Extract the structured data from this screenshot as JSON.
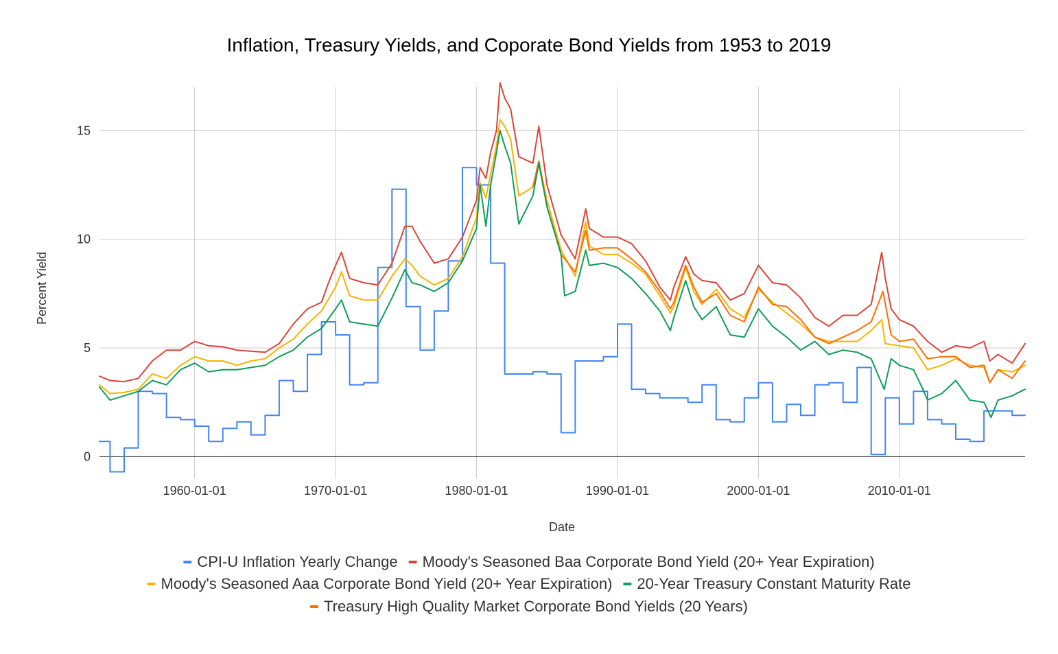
{
  "chart_data": {
    "type": "line",
    "title": "Inflation, Treasury Yields, and Coporate Bond Yields from 1953 to 2019",
    "xlabel": "Date",
    "ylabel": "Percent Yield",
    "x_type": "date",
    "xlim": [
      "1953-04-01",
      "2018-12-01"
    ],
    "ylim": [
      -1,
      17
    ],
    "x_ticks": [
      "1960-01-01",
      "1970-01-01",
      "1980-01-01",
      "1990-01-01",
      "2000-01-01",
      "2010-01-01"
    ],
    "y_ticks": [
      0,
      5,
      10,
      15
    ],
    "grid": true,
    "legend_position": "bottom",
    "series": [
      {
        "name": "CPI-U Inflation Yearly Change",
        "color": "#4285F4",
        "step": true,
        "x": [
          "1953-04-01",
          "1954-01-01",
          "1955-01-01",
          "1956-01-01",
          "1957-01-01",
          "1958-01-01",
          "1959-01-01",
          "1960-01-01",
          "1961-01-01",
          "1962-01-01",
          "1963-01-01",
          "1964-01-01",
          "1965-01-01",
          "1966-01-01",
          "1967-01-01",
          "1968-01-01",
          "1969-01-01",
          "1970-01-01",
          "1971-01-01",
          "1972-01-01",
          "1973-01-01",
          "1974-01-01",
          "1975-01-01",
          "1976-01-01",
          "1977-01-01",
          "1978-01-01",
          "1979-01-01",
          "1980-01-01",
          "1981-01-01",
          "1982-01-01",
          "1983-01-01",
          "1984-01-01",
          "1985-01-01",
          "1986-01-01",
          "1987-01-01",
          "1988-01-01",
          "1989-01-01",
          "1990-01-01",
          "1991-01-01",
          "1992-01-01",
          "1993-01-01",
          "1994-01-01",
          "1995-01-01",
          "1996-01-01",
          "1997-01-01",
          "1998-01-01",
          "1999-01-01",
          "2000-01-01",
          "2001-01-01",
          "2002-01-01",
          "2003-01-01",
          "2004-01-01",
          "2005-01-01",
          "2006-01-01",
          "2007-01-01",
          "2008-01-01",
          "2009-01-01",
          "2010-01-01",
          "2011-01-01",
          "2012-01-01",
          "2013-01-01",
          "2014-01-01",
          "2015-01-01",
          "2016-01-01",
          "2017-01-01",
          "2018-01-01",
          "2018-12-01"
        ],
        "values": [
          0.7,
          -0.7,
          0.4,
          3.0,
          2.9,
          1.8,
          1.7,
          1.4,
          0.7,
          1.3,
          1.6,
          1.0,
          1.9,
          3.5,
          3.0,
          4.7,
          6.2,
          5.6,
          3.3,
          3.4,
          8.7,
          12.3,
          6.9,
          4.9,
          6.7,
          9.0,
          13.3,
          12.5,
          8.9,
          3.8,
          3.8,
          3.9,
          3.8,
          1.1,
          4.4,
          4.4,
          4.6,
          6.1,
          3.1,
          2.9,
          2.7,
          2.7,
          2.5,
          3.3,
          1.7,
          1.6,
          2.7,
          3.4,
          1.6,
          2.4,
          1.9,
          3.3,
          3.4,
          2.5,
          4.1,
          0.1,
          2.7,
          1.5,
          3.0,
          1.7,
          1.5,
          0.8,
          0.7,
          2.1,
          2.1,
          1.9,
          1.9
        ]
      },
      {
        "name": "Moody's Seasoned Baa Corporate Bond Yield (20+ Year Expiration)",
        "color": "#DB4437",
        "x": [
          "1953-04-01",
          "1954-01-01",
          "1955-01-01",
          "1956-01-01",
          "1957-01-01",
          "1958-01-01",
          "1959-01-01",
          "1960-01-01",
          "1961-01-01",
          "1962-01-01",
          "1963-01-01",
          "1964-01-01",
          "1965-01-01",
          "1966-01-01",
          "1967-01-01",
          "1968-01-01",
          "1969-01-01",
          "1969-07-01",
          "1970-01-01",
          "1970-06-01",
          "1971-01-01",
          "1972-01-01",
          "1973-01-01",
          "1974-01-01",
          "1974-12-01",
          "1975-06-01",
          "1976-01-01",
          "1977-01-01",
          "1978-01-01",
          "1979-01-01",
          "1980-01-01",
          "1980-04-01",
          "1980-09-01",
          "1981-01-01",
          "1981-06-01",
          "1981-09-01",
          "1982-01-01",
          "1982-06-01",
          "1983-01-01",
          "1984-01-01",
          "1984-06-01",
          "1985-01-01",
          "1986-01-01",
          "1987-01-01",
          "1987-10-01",
          "1988-01-01",
          "1989-01-01",
          "1990-01-01",
          "1991-01-01",
          "1992-01-01",
          "1993-01-01",
          "1993-10-01",
          "1994-01-01",
          "1994-11-01",
          "1995-06-01",
          "1996-01-01",
          "1997-01-01",
          "1998-01-01",
          "1999-01-01",
          "2000-01-01",
          "2001-01-01",
          "2002-01-01",
          "2003-01-01",
          "2004-01-01",
          "2005-01-01",
          "2006-01-01",
          "2007-01-01",
          "2008-01-01",
          "2008-10-01",
          "2009-01-01",
          "2009-06-01",
          "2010-01-01",
          "2011-01-01",
          "2012-01-01",
          "2013-01-01",
          "2014-01-01",
          "2015-01-01",
          "2016-01-01",
          "2016-06-01",
          "2017-01-01",
          "2018-01-01",
          "2018-12-01"
        ],
        "values": [
          3.7,
          3.5,
          3.45,
          3.6,
          4.4,
          4.9,
          4.9,
          5.3,
          5.1,
          5.05,
          4.9,
          4.85,
          4.8,
          5.2,
          6.1,
          6.8,
          7.1,
          8.0,
          8.8,
          9.4,
          8.2,
          8.0,
          7.9,
          8.9,
          10.6,
          10.6,
          9.9,
          8.9,
          9.1,
          10.1,
          11.8,
          13.3,
          12.8,
          14.0,
          15.0,
          17.2,
          16.5,
          16.0,
          13.8,
          13.5,
          15.2,
          12.5,
          10.2,
          9.1,
          11.4,
          10.5,
          10.1,
          10.1,
          9.8,
          9.0,
          7.8,
          7.2,
          7.8,
          9.2,
          8.4,
          8.1,
          8.0,
          7.2,
          7.5,
          8.8,
          8.0,
          7.9,
          7.3,
          6.4,
          6.0,
          6.5,
          6.5,
          7.0,
          9.4,
          8.2,
          6.8,
          6.3,
          6.0,
          5.3,
          4.8,
          5.1,
          5.0,
          5.3,
          4.4,
          4.7,
          4.3,
          5.2
        ]
      },
      {
        "name": "Moody's Seasoned Aaa Corporate Bond Yield (20+ Year Expiration)",
        "color": "#F4B400",
        "x": [
          "1953-04-01",
          "1954-01-01",
          "1955-01-01",
          "1956-01-01",
          "1957-01-01",
          "1958-01-01",
          "1959-01-01",
          "1960-01-01",
          "1961-01-01",
          "1962-01-01",
          "1963-01-01",
          "1964-01-01",
          "1965-01-01",
          "1966-01-01",
          "1967-01-01",
          "1968-01-01",
          "1969-01-01",
          "1970-01-01",
          "1970-06-01",
          "1971-01-01",
          "1972-01-01",
          "1973-01-01",
          "1974-01-01",
          "1974-12-01",
          "1975-06-01",
          "1976-01-01",
          "1977-01-01",
          "1978-01-01",
          "1979-01-01",
          "1980-01-01",
          "1980-04-01",
          "1980-09-01",
          "1981-01-01",
          "1981-06-01",
          "1981-09-01",
          "1982-01-01",
          "1982-06-01",
          "1983-01-01",
          "1984-01-01",
          "1984-06-01",
          "1985-01-01",
          "1986-01-01",
          "1987-01-01",
          "1987-10-01",
          "1988-01-01",
          "1989-01-01",
          "1990-01-01",
          "1991-01-01",
          "1992-01-01",
          "1993-01-01",
          "1993-10-01",
          "1994-01-01",
          "1994-11-01",
          "1995-06-01",
          "1996-01-01",
          "1997-01-01",
          "1998-01-01",
          "1999-01-01",
          "2000-01-01",
          "2001-01-01",
          "2002-01-01",
          "2003-01-01",
          "2004-01-01",
          "2005-01-01",
          "2006-01-01",
          "2007-01-01",
          "2008-01-01",
          "2008-10-01",
          "2009-01-01",
          "2010-01-01",
          "2011-01-01",
          "2012-01-01",
          "2013-01-01",
          "2014-01-01",
          "2015-01-01",
          "2016-01-01",
          "2016-06-01",
          "2017-01-01",
          "2018-01-01",
          "2018-12-01"
        ],
        "values": [
          3.3,
          2.9,
          2.95,
          3.1,
          3.8,
          3.6,
          4.2,
          4.6,
          4.4,
          4.4,
          4.2,
          4.4,
          4.5,
          5.0,
          5.4,
          6.1,
          6.7,
          7.8,
          8.5,
          7.4,
          7.2,
          7.2,
          8.3,
          9.1,
          8.8,
          8.3,
          7.9,
          8.2,
          9.2,
          11.0,
          12.6,
          11.9,
          13.0,
          14.3,
          15.5,
          15.2,
          14.6,
          12.0,
          12.4,
          13.6,
          11.8,
          9.5,
          8.3,
          10.8,
          9.7,
          9.3,
          9.3,
          8.9,
          8.4,
          7.4,
          6.6,
          6.9,
          8.7,
          7.6,
          7.0,
          7.7,
          6.8,
          6.4,
          7.7,
          7.1,
          6.6,
          6.1,
          5.5,
          5.3,
          5.3,
          5.3,
          5.8,
          6.3,
          5.2,
          5.1,
          5.0,
          4.0,
          4.2,
          4.5,
          4.2,
          4.1,
          3.4,
          4.0,
          3.9,
          4.2
        ]
      },
      {
        "name": "20-Year Treasury Constant Maturity Rate",
        "color": "#0F9D58",
        "x": [
          "1953-04-01",
          "1954-01-01",
          "1955-01-01",
          "1956-01-01",
          "1957-01-01",
          "1958-01-01",
          "1959-01-01",
          "1960-01-01",
          "1961-01-01",
          "1962-01-01",
          "1963-01-01",
          "1964-01-01",
          "1965-01-01",
          "1966-01-01",
          "1967-01-01",
          "1968-01-01",
          "1969-01-01",
          "1970-01-01",
          "1970-06-01",
          "1971-01-01",
          "1972-01-01",
          "1973-01-01",
          "1974-01-01",
          "1974-12-01",
          "1975-06-01",
          "1976-01-01",
          "1977-01-01",
          "1978-01-01",
          "1979-01-01",
          "1980-01-01",
          "1980-04-01",
          "1980-09-01",
          "1981-01-01",
          "1981-06-01",
          "1981-09-01",
          "1982-01-01",
          "1982-06-01",
          "1983-01-01",
          "1984-01-01",
          "1984-06-01",
          "1985-01-01",
          "1986-01-01",
          "1986-04-01",
          "1987-01-01",
          "1987-10-01",
          "1988-01-01",
          "1989-01-01",
          "1990-01-01",
          "1991-01-01",
          "1992-01-01",
          "1993-01-01",
          "1993-10-01",
          "1994-01-01",
          "1994-11-01",
          "1995-06-01",
          "1996-01-01",
          "1997-01-01",
          "1998-01-01",
          "1999-01-01",
          "2000-01-01",
          "2001-01-01",
          "2002-01-01",
          "2003-01-01",
          "2004-01-01",
          "2005-01-01",
          "2006-01-01",
          "2007-01-01",
          "2008-01-01",
          "2008-12-01",
          "2009-06-01",
          "2010-01-01",
          "2011-01-01",
          "2011-09-01",
          "2012-01-01",
          "2013-01-01",
          "2014-01-01",
          "2015-01-01",
          "2016-01-01",
          "2016-07-01",
          "2017-01-01",
          "2018-01-01",
          "2018-12-01"
        ],
        "values": [
          3.2,
          2.6,
          2.8,
          3.0,
          3.5,
          3.3,
          4.0,
          4.3,
          3.9,
          4.0,
          4.0,
          4.1,
          4.2,
          4.6,
          4.9,
          5.5,
          5.9,
          6.8,
          7.2,
          6.2,
          6.1,
          6.0,
          7.3,
          8.6,
          8.0,
          7.9,
          7.6,
          8.0,
          9.0,
          10.5,
          12.5,
          10.6,
          12.5,
          14.0,
          15.0,
          14.3,
          13.5,
          10.7,
          12.0,
          13.5,
          11.5,
          9.3,
          7.4,
          7.6,
          9.5,
          8.8,
          8.9,
          8.7,
          8.2,
          7.5,
          6.7,
          5.8,
          6.4,
          8.1,
          6.9,
          6.3,
          6.9,
          5.6,
          5.5,
          6.8,
          6.0,
          5.5,
          4.9,
          5.3,
          4.7,
          4.9,
          4.8,
          4.5,
          3.1,
          4.5,
          4.2,
          4.0,
          3.1,
          2.6,
          2.9,
          3.5,
          2.6,
          2.5,
          1.8,
          2.6,
          2.8,
          3.1
        ]
      },
      {
        "name": "Treasury High Quality Market Corporate Bond Yields (20 Years)",
        "color": "#FF6D00",
        "x": [
          "1984-01-01",
          "1984-06-01",
          "1985-01-01",
          "1986-01-01",
          "1987-01-01",
          "1987-10-01",
          "1988-01-01",
          "1989-01-01",
          "1990-01-01",
          "1991-01-01",
          "1992-01-01",
          "1993-01-01",
          "1993-10-01",
          "1994-01-01",
          "1994-11-01",
          "1995-06-01",
          "1996-01-01",
          "1997-01-01",
          "1998-01-01",
          "1999-01-01",
          "2000-01-01",
          "2001-01-01",
          "2002-01-01",
          "2003-01-01",
          "2004-01-01",
          "2005-01-01",
          "2006-01-01",
          "2007-01-01",
          "2008-01-01",
          "2008-11-01",
          "2009-06-01",
          "2010-01-01",
          "2011-01-01",
          "2012-01-01",
          "2013-01-01",
          "2014-01-01",
          "2015-01-01",
          "2016-01-01",
          "2016-06-01",
          "2017-01-01",
          "2018-01-01",
          "2018-12-01"
        ],
        "values": [
          12.4,
          13.6,
          11.5,
          9.3,
          8.5,
          10.4,
          9.5,
          9.6,
          9.6,
          9.1,
          8.5,
          7.6,
          6.8,
          7.1,
          8.8,
          7.8,
          7.1,
          7.5,
          6.5,
          6.2,
          7.8,
          7.0,
          6.9,
          6.3,
          5.5,
          5.2,
          5.5,
          5.8,
          6.2,
          7.6,
          5.6,
          5.3,
          5.4,
          4.5,
          4.6,
          4.6,
          4.1,
          4.2,
          3.4,
          4.0,
          3.6,
          4.4
        ]
      }
    ]
  }
}
